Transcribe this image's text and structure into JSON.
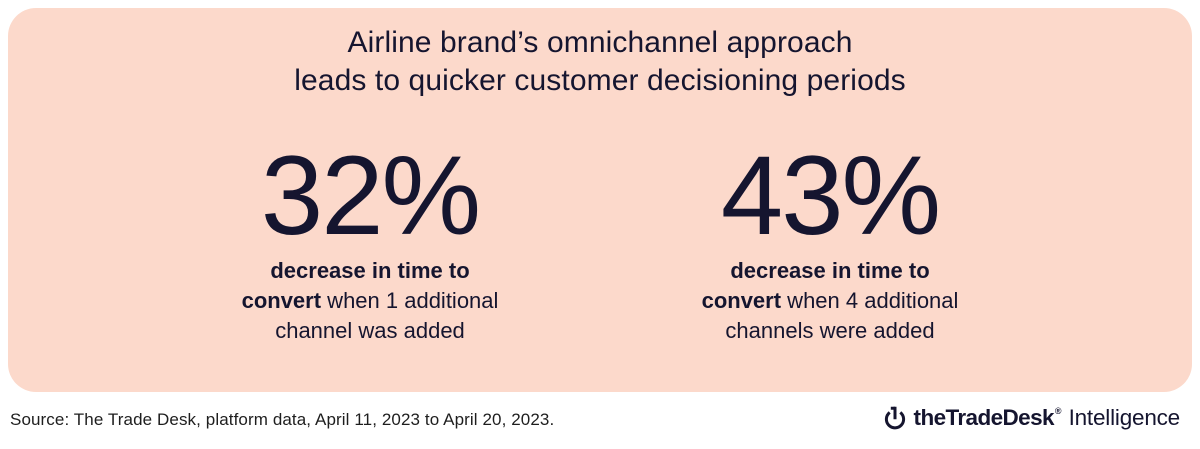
{
  "title": {
    "lines": [
      "Airline brand’s omnichannel approach",
      "leads to quicker customer decisioning periods"
    ]
  },
  "stats": [
    {
      "value": "32%",
      "desc_lines": [
        [
          {
            "text": "decrease in time to",
            "bold": true
          }
        ],
        [
          {
            "text": "convert",
            "bold": true
          },
          {
            "text": " when 1 additional",
            "bold": false
          }
        ],
        [
          {
            "text": "channel was added",
            "bold": false
          }
        ]
      ]
    },
    {
      "value": "43%",
      "desc_lines": [
        [
          {
            "text": "decrease in time to",
            "bold": true
          }
        ],
        [
          {
            "text": "convert",
            "bold": true
          },
          {
            "text": " when 4 additional",
            "bold": false
          }
        ],
        [
          {
            "text": "channels were added",
            "bold": false
          }
        ]
      ]
    }
  ],
  "footer": {
    "source": "Source: The Trade Desk, platform data, April 11, 2023 to April 20, 2023.",
    "brand": "theTradeDesk",
    "brand_mark": "®",
    "brand_suffix": "Intelligence",
    "icon": "trade-desk-logo-icon"
  },
  "colors": {
    "page_bg": "#FFFFFF",
    "card_bg": "#FCD9CB",
    "ink": "#15152F",
    "source_ink": "#1E1E1E"
  },
  "chart_data": {
    "type": "table",
    "title": "Airline brand’s omnichannel approach leads to quicker customer decisioning periods",
    "metric": "decrease in time to convert (%)",
    "categories": [
      "1 additional channel added",
      "4 additional channels added"
    ],
    "values": [
      32,
      43
    ],
    "source": "The Trade Desk, platform data, April 11, 2023 to April 20, 2023"
  }
}
